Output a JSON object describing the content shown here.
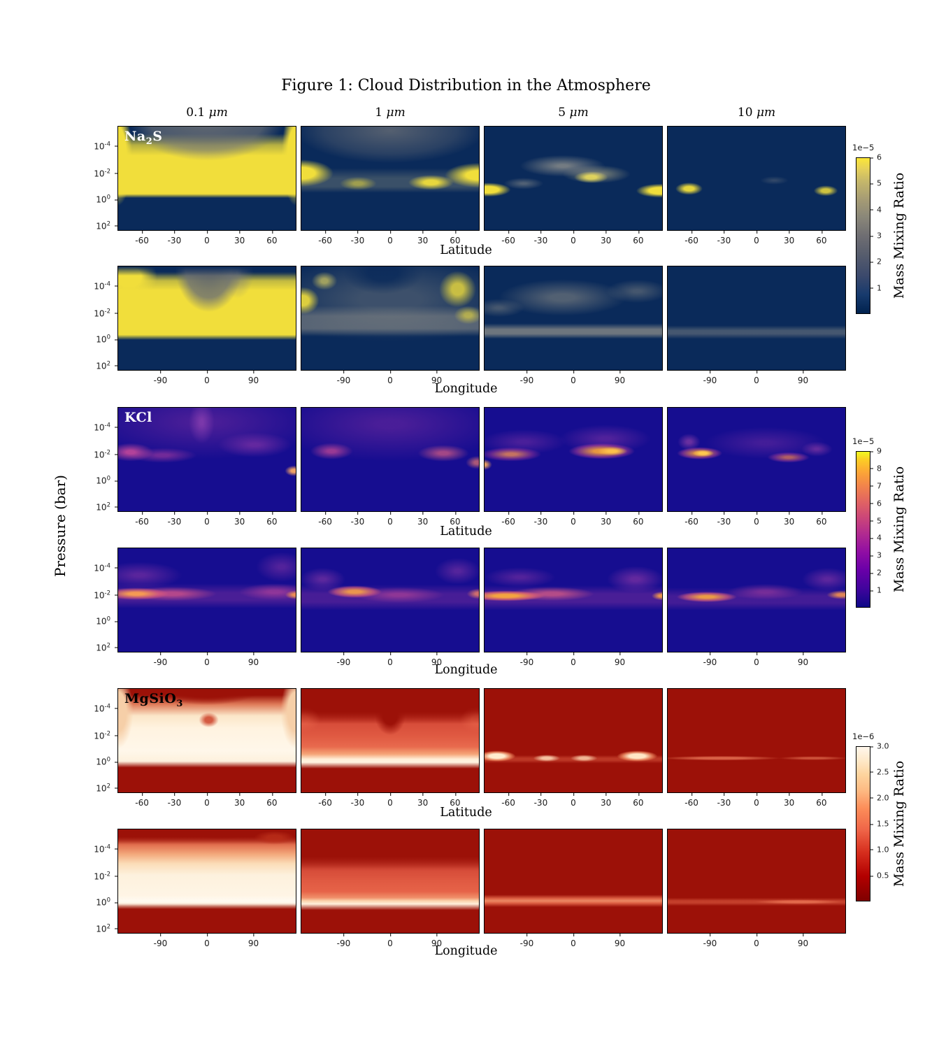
{
  "title": "Figure 1: Cloud Distribution in the Atmosphere",
  "y_axis_label": "Pressure (bar)",
  "axis_labels": {
    "latitude": "Latitude",
    "longitude": "Longitude"
  },
  "columns": [
    {
      "value": "0.1",
      "unit": "μm"
    },
    {
      "value": "1",
      "unit": "μm"
    },
    {
      "value": "5",
      "unit": "μm"
    },
    {
      "value": "10",
      "unit": "μm"
    }
  ],
  "y_ticks": [
    {
      "base": "10",
      "exp": "-4"
    },
    {
      "base": "10",
      "exp": "-2"
    },
    {
      "base": "10",
      "exp": "0"
    },
    {
      "base": "10",
      "exp": "2"
    }
  ],
  "lat_ticks": [
    "-60",
    "-30",
    "0",
    "30",
    "60"
  ],
  "lon_ticks": [
    "-90",
    "0",
    "90"
  ],
  "species": [
    {
      "id": "na2s",
      "label_main": "Na",
      "label_sub": "2",
      "label_end": "S",
      "label_color": "#ffffff",
      "colorbar": {
        "scale": "1e−5",
        "max": 6,
        "tick_values": [
          1,
          2,
          3,
          4,
          5,
          6
        ],
        "tick_labels": [
          "1",
          "2",
          "3",
          "4",
          "5",
          "6"
        ],
        "label": "Mass Mixing Ratio",
        "colormap": "cividis"
      }
    },
    {
      "id": "kcl",
      "label_main": "KCl",
      "label_sub": "",
      "label_end": "",
      "label_color": "#ffffff",
      "colorbar": {
        "scale": "1e−5",
        "max": 9,
        "tick_values": [
          1,
          2,
          3,
          4,
          5,
          6,
          7,
          8,
          9
        ],
        "tick_labels": [
          "1",
          "2",
          "3",
          "4",
          "5",
          "6",
          "7",
          "8",
          "9"
        ],
        "label": "Mass Mixing Ratio",
        "colormap": "plasma"
      }
    },
    {
      "id": "mgsio3",
      "label_main": "MgSiO",
      "label_sub": "3",
      "label_end": "",
      "label_color": "#000000",
      "colorbar": {
        "scale": "1e−6",
        "max": 3,
        "tick_values": [
          0.5,
          1,
          1.5,
          2,
          2.5,
          3
        ],
        "tick_labels": [
          "0.5",
          "1.0",
          "1.5",
          "2.0",
          "2.5",
          "3.0"
        ],
        "label": "Mass Mixing Ratio",
        "colormap": "OrRd_r"
      }
    }
  ],
  "chart_data": {
    "type": "heatmap",
    "title": "Figure 1: Cloud Distribution in the Atmosphere",
    "grid": "3 cloud species (rows of 2: latitude view, longitude view) × 4 particle sizes (columns)",
    "particle_sizes_um": [
      0.1,
      1,
      5,
      10
    ],
    "x_axes": {
      "latitude": {
        "label": "Latitude",
        "ticks": [
          -60,
          -30,
          0,
          30,
          60
        ],
        "range": [
          -85,
          85
        ]
      },
      "longitude": {
        "label": "Longitude",
        "ticks": [
          -90,
          0,
          90
        ],
        "range": [
          -180,
          180
        ]
      }
    },
    "y_axis": {
      "label": "Pressure (bar)",
      "scale": "log",
      "ticks": [
        "1e-4",
        "1e-2",
        "1e0",
        "1e2"
      ],
      "range": [
        "~3e-6 (top)",
        "~3e2 (bottom)"
      ]
    },
    "colorbars": [
      {
        "species": "Na2S",
        "label": "Mass Mixing Ratio",
        "scale_factor": "1e-5",
        "range": [
          0,
          6
        ],
        "ticks": [
          1,
          2,
          3,
          4,
          5,
          6
        ],
        "colormap": "cividis (dark navy → gray → yellow)"
      },
      {
        "species": "KCl",
        "label": "Mass Mixing Ratio",
        "scale_factor": "1e-5",
        "range": [
          0,
          9
        ],
        "ticks": [
          1,
          2,
          3,
          4,
          5,
          6,
          7,
          8,
          9
        ],
        "colormap": "plasma (dark indigo → magenta → orange → yellow)"
      },
      {
        "species": "MgSiO3",
        "label": "Mass Mixing Ratio",
        "scale_factor": "1e-6",
        "range": [
          0,
          3
        ],
        "ticks": [
          0.5,
          1.0,
          1.5,
          2.0,
          2.5,
          3.0
        ],
        "colormap": "OrRd reversed (dark red → salmon → cream white)"
      }
    ],
    "panels": [
      {
        "species": "Na2S",
        "size_um": 0.1,
        "x_axis": "latitude",
        "pattern": "Thick bright cloud (~6e-5) filling ~1e-3 to 1 bar at all latitudes; gray haze (2-3e-5) above 1e-3 bar strongest over equator; clear (dark) below ~1 bar"
      },
      {
        "species": "Na2S",
        "size_um": 1,
        "x_axis": "latitude",
        "pattern": "Bright cloud at ~0.01-1 bar near poles (|lat|>50°); equatorial region clear below 0.1 bar; diffuse gray haze aloft; faint mid band"
      },
      {
        "species": "Na2S",
        "size_um": 5,
        "x_axis": "latitude",
        "pattern": "Patchy gray-yellow wisps (1-3e-5) at ~0.01-0.1 bar over mid latitudes; bright yellow spots (~6e-5) near ±80° at ~1 bar"
      },
      {
        "species": "Na2S",
        "size_um": 10,
        "x_axis": "latitude",
        "pattern": "Mostly clear; two small bright spots (~5e-5) near -65° and +70° at ~1 bar"
      },
      {
        "species": "Na2S",
        "size_um": 0.1,
        "x_axis": "longitude",
        "pattern": "Bright cloud (~6e-5) from ~1e-4 to 1 bar at most longitudes; darker hazy column (2-3e-5) above 0.01 bar between ~0° and 90°E; clear below 1 bar"
      },
      {
        "species": "Na2S",
        "size_um": 1,
        "x_axis": "longitude",
        "pattern": "Widespread gray haze (2-3e-5); brighter yellow patches near the west limb at 1e-3-0.01 bar and near 90-135°E aloft; gray band near 0.1-1 bar"
      },
      {
        "species": "Na2S",
        "size_um": 5,
        "x_axis": "longitude",
        "pattern": "Faint gray haze arc (1.5-2.5e-5) around 1e-3-0.01 bar and thin gray band near 1 bar at all longitudes"
      },
      {
        "species": "Na2S",
        "size_um": 10,
        "x_axis": "longitude",
        "pattern": "Very faint thin gray band (~1e-5) near 1 bar"
      },
      {
        "species": "KCl",
        "size_um": 0.1,
        "x_axis": "latitude",
        "pattern": "Diffuse purple cloud (1-3e-5) above 0.01 bar; brightest (~4e-5) near -60° at 0.01 bar; small bright pink spot (~7e-5) near +80° at ~0.5 bar; clear dome below"
      },
      {
        "species": "KCl",
        "size_um": 1,
        "x_axis": "latitude",
        "pattern": "Diffuse cloud at 1e-3 to 0.01 bar, brighter (~4e-5) near ±60-80°; small bright spot at far right edge"
      },
      {
        "species": "KCl",
        "size_um": 5,
        "x_axis": "latitude",
        "pattern": "Bright orange bands (6-9e-5) at ~0.01 bar: strong from +20° to +75°, moderate from -70° to -30°; clear at equator"
      },
      {
        "species": "KCl",
        "size_um": 10,
        "x_axis": "latitude",
        "pattern": "Bright orange band (7-9e-5) from -60° to -30° at ~0.01 bar; moderate (4-6e-5) from +30° to +70°"
      },
      {
        "species": "KCl",
        "size_um": 0.1,
        "x_axis": "longitude",
        "pattern": "Cloud band (3-6e-5) at ~0.01 bar, brightest (~7e-5) near 135-90°W; bright spot at the east limb; faint purple haze aloft"
      },
      {
        "species": "KCl",
        "size_um": 1,
        "x_axis": "longitude",
        "pattern": "Band at ~0.01 bar with orange peak (~7e-5) near 90-60°W; bright spot near the east limb"
      },
      {
        "species": "KCl",
        "size_um": 5,
        "x_axis": "longitude",
        "pattern": "Bright orange band (7-9e-5) from 180°W to ~0° at ~0.01 bar; purple patches eastward; bright spot at the east limb"
      },
      {
        "species": "KCl",
        "size_um": 10,
        "x_axis": "longitude",
        "pattern": "Band peak (6-8e-5) near 120-60°W at ~0.01 bar; moderate purple patches east; orange at far east limb"
      },
      {
        "species": "MgSiO3",
        "size_um": 0.1,
        "x_axis": "latitude",
        "pattern": "Thick cream cloud (~3e-6) from ~0.01 to 10 bar at all latitudes, reaching 1e-4 bar near the poles; dark clear dome above the equator with small notch; clear below ~30 bar"
      },
      {
        "species": "MgSiO3",
        "size_um": 1,
        "x_axis": "latitude",
        "pattern": "Moderate salmon cloud (1-1.5e-6) 0.01-10 bar with bright cream base (~3e-6) at ~3-10 bar; clear V-shaped wedge above the equator"
      },
      {
        "species": "MgSiO3",
        "size_um": 5,
        "x_axis": "latitude",
        "pattern": "Thin bright cloud base (2-3e-6) at ~10 bar, patchy in latitude (strongest near -70°, +70° and equator)"
      },
      {
        "species": "MgSiO3",
        "size_um": 10,
        "x_axis": "latitude",
        "pattern": "Very thin faint layer (~1e-6) at ~10 bar"
      },
      {
        "species": "MgSiO3",
        "size_um": 0.1,
        "x_axis": "longitude",
        "pattern": "Thick cream cloud (~3e-6) from ~1e-3 to 10 bar at all longitudes with bright white line at ~10 bar; salmon haze to 1e-5 bar with dark red patches at top near 45-135°E; clear below ~30 bar"
      },
      {
        "species": "MgSiO3",
        "size_um": 1,
        "x_axis": "longitude",
        "pattern": "Moderate salmon cloud (1-1.5e-6) from ~0.01 to 10 bar; bright cream base line (~2.5e-6) at ~10 bar; clear above 1e-3 bar"
      },
      {
        "species": "MgSiO3",
        "size_um": 5,
        "x_axis": "longitude",
        "pattern": "Thin salmon cloud layer (~1e-6) at ~10 bar across all longitudes"
      },
      {
        "species": "MgSiO3",
        "size_um": 10,
        "x_axis": "longitude",
        "pattern": "Very faint thin layer (<1e-6) at ~10 bar, slightly stronger east of 0°"
      }
    ]
  }
}
